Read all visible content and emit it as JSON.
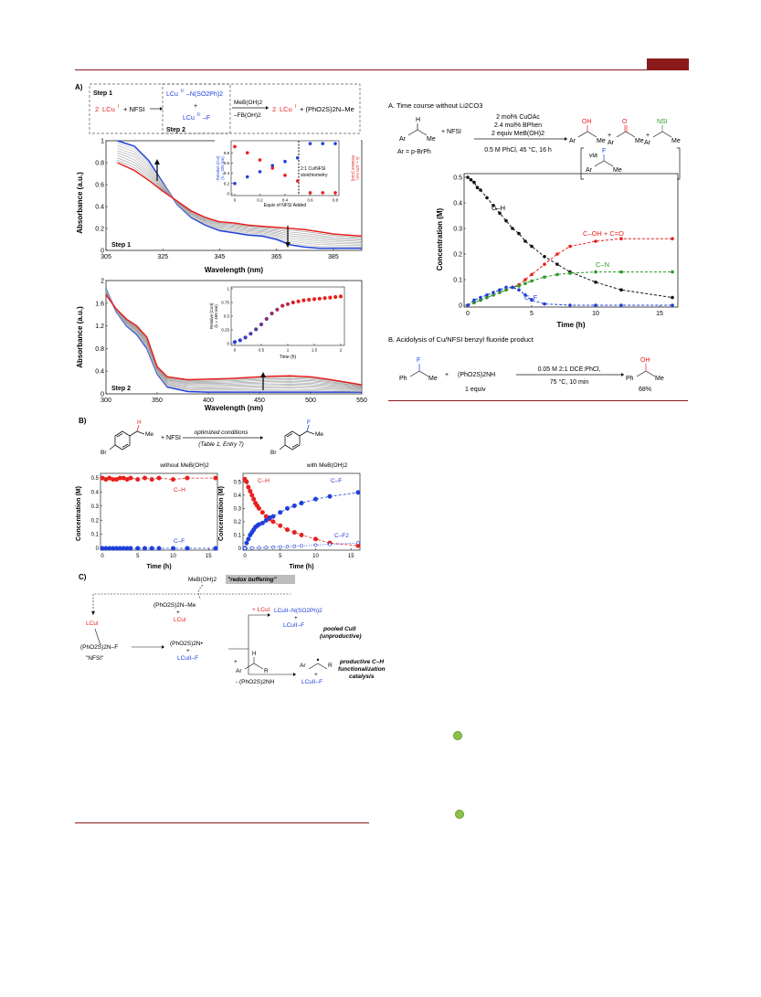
{
  "panelA_left": {
    "label": "A)",
    "step1": "Step 1",
    "step2": "Step 2",
    "reaction": {
      "coef": "2",
      "lcu": "LCu",
      "sup_i": "I",
      "sup_ii": "II",
      "nfsi": "+ NFSI",
      "top_product": "LCu",
      "top_product_tail": "–N(SO2Ph)2",
      "plus": "+",
      "bottom_product": "LCu",
      "bottom_product_tail": "–F",
      "reagent_top": "MeB(OH)2",
      "reagent_bottom": "–FB(OH)2",
      "right_coef": "2",
      "right_rest": "+ (PhO2S)2N–Me"
    },
    "spec1": {
      "ylabel": "Absorbance (a.u.)",
      "xlabel": "Wavelength (nm)",
      "yticks": [
        "0",
        "0.2",
        "0.4",
        "0.6",
        "0.8",
        "1"
      ],
      "xticks": [
        "305",
        "325",
        "345",
        "365",
        "385"
      ],
      "step": "Step 1"
    },
    "inset1": {
      "xlabel": "Equiv of NFSI Added",
      "ylabel_left": "Relative [CuI]",
      "ylabel_left2": "(λ = 325 nm)",
      "ylabel_right": "Relative [CuII]",
      "ylabel_right2": "(λ = 375 nm)",
      "annot1": "2:1 Cu/NFSI",
      "annot2": "stoichiometry",
      "xticks": [
        "0",
        "0.2",
        "0.4",
        "0.6",
        "0.8"
      ],
      "yticks": [
        "0",
        "0.2",
        "0.4",
        "0.6",
        "0.8"
      ]
    },
    "spec2": {
      "ylabel": "Absorbance (a.u.)",
      "xlabel": "Wavelength (nm)",
      "yticks": [
        "0",
        "0.4",
        "0.8",
        "1.2",
        "1.6",
        "2"
      ],
      "xticks": [
        "300",
        "350",
        "400",
        "450",
        "500",
        "550"
      ],
      "step": "Step 2"
    },
    "inset2": {
      "xlabel": "Time (h)",
      "ylabel": "Relative [CuII]",
      "ylabel2": "(λ = 460 nm)",
      "xticks": [
        "0",
        "0.5",
        "1",
        "1.5",
        "2"
      ],
      "yticks": [
        "0",
        "0.25",
        "0.5",
        "0.75",
        "1"
      ]
    }
  },
  "panelB": {
    "label": "B)",
    "me": "Me",
    "br": "Br",
    "h": "H",
    "f": "F",
    "nfsi": "+ NFSI",
    "arrow_top": "optimized conditions",
    "arrow_bottom": "(Table 1, Entry 7)",
    "left_title": "without MeB(OH)2",
    "right_title": "with MeB(OH)2",
    "ylabel": "Concentration (M)",
    "xlabel": "Time (h)",
    "yticks": [
      "0",
      "0.1",
      "0.2",
      "0.3",
      "0.4",
      "0.5"
    ],
    "xticks": [
      "0",
      "5",
      "10",
      "15"
    ],
    "ch": "C–H",
    "cf": "C–F",
    "cf2": "C–F2"
  },
  "panelC": {
    "label": "C)",
    "meboh": "MeB(OH)2",
    "redox": "\"redox buffering\"",
    "nme": "(PhO2S)2N–Me",
    "plus": "+",
    "lcu1": "LCuI",
    "plus_lcu": "+ LCuI",
    "pooled_top": "LCuII–N(SO2Ph)2",
    "pooled_bottom": "LCuII–F",
    "pooled_label1": "pooled CuII",
    "pooled_label2": "(unproductive)",
    "nf": "(PhO2S)2N–F",
    "nfsi_q": "\"NFSI\"",
    "radical": "(PhO2S)2N•",
    "lcuf": "LCuII–F",
    "ar": "Ar",
    "r": "R",
    "h": "H",
    "nh": "- (PhO2S)2NH",
    "prod_label1": "productive C–H",
    "prod_label2": "functionalization",
    "prod_label3": "catalysis"
  },
  "panelA_right": {
    "title": "A. Time course without Li2CO3",
    "h": "H",
    "ar": "Ar",
    "me": "Me",
    "nfsi": "+ NFSI",
    "cond1": "2 mol% CuOAc",
    "cond2": "2.4 mol% BPhen",
    "cond3": "2 equiv MeB(OH)2",
    "cond4": "0.5 M PhCl, 45 °C, 16 h",
    "ar_def": "Ar = p-BrPh",
    "oh": "OH",
    "o": "O",
    "nsi": "NSI",
    "via": "via",
    "f": "F",
    "ylabel": "Concentration (M)",
    "xlabel": "Time (h)",
    "yticks": [
      "0",
      "0.1",
      "0.2",
      "0.3",
      "0.4",
      "0.5"
    ],
    "xticks": [
      "0",
      "5",
      "10",
      "15"
    ],
    "lab_ch": "C–H",
    "lab_cohco": "C–OH + C=O",
    "lab_cn": "C–N",
    "lab_cf": "C–F"
  },
  "panelB_right": {
    "title": "B. Acidolysis of Cu/NFSI benzyl fluoride product",
    "f": "F",
    "ph": "Ph",
    "me": "Me",
    "plus": "+",
    "reagent": "(PhO2S)2NH",
    "equiv": "1 equiv",
    "cond1": "0.05 M 2:1 DCE:PhCl,",
    "cond2": "75 °C, 10 min",
    "oh": "OH",
    "yield": "68%"
  },
  "colors": {
    "accent": "#8b1a1a",
    "red": "#e8201e",
    "blue": "#1f3fdc",
    "green": "#2a9a2a",
    "black": "#111111",
    "gray": "#9a9a9a"
  },
  "chart_data": [
    {
      "type": "line",
      "title": "Step 1",
      "xlabel": "Wavelength (nm)",
      "ylabel": "Absorbance (a.u.)",
      "xlim": [
        305,
        395
      ],
      "ylim": [
        0,
        1
      ],
      "x": [
        309,
        315,
        320,
        325,
        330,
        335,
        340,
        345,
        350,
        355,
        360,
        365,
        370,
        375,
        380,
        385,
        395
      ],
      "series": [
        {
          "color": "blue",
          "values": [
            1.0,
            0.95,
            0.82,
            0.62,
            0.42,
            0.3,
            0.23,
            0.18,
            0.16,
            0.14,
            0.13,
            0.1,
            0.05,
            0.03,
            0.02,
            0.02,
            0.02
          ]
        },
        {
          "color": "red",
          "values": [
            0.8,
            0.73,
            0.64,
            0.54,
            0.45,
            0.36,
            0.3,
            0.26,
            0.25,
            0.23,
            0.22,
            0.21,
            0.2,
            0.19,
            0.17,
            0.15,
            0.13
          ]
        }
      ]
    },
    {
      "type": "scatter",
      "xlabel": "Equiv of NFSI Added",
      "ylim": [
        0,
        1
      ],
      "xlim": [
        0,
        0.8
      ],
      "series": [
        {
          "color": "blue",
          "x": [
            0.0,
            0.1,
            0.2,
            0.3,
            0.4,
            0.5,
            0.6,
            0.7,
            0.8
          ],
          "values": [
            0.2,
            0.33,
            0.43,
            0.55,
            0.63,
            0.7,
            0.76,
            0.82,
            0.86
          ]
        },
        {
          "color": "red",
          "x": [
            0.0,
            0.1,
            0.2,
            0.3,
            0.4,
            0.5,
            0.6,
            0.7,
            0.8
          ],
          "values": [
            0.92,
            0.8,
            0.66,
            0.5,
            0.36,
            0.25,
            0.15,
            0.1,
            0.06
          ]
        }
      ]
    },
    {
      "type": "line",
      "title": "Step 2",
      "xlabel": "Wavelength (nm)",
      "ylabel": "Absorbance (a.u.)",
      "xlim": [
        300,
        550
      ],
      "ylim": [
        0,
        2
      ],
      "x": [
        300,
        310,
        320,
        330,
        340,
        350,
        360,
        380,
        400,
        420,
        440,
        460,
        480,
        500,
        520,
        540,
        550
      ],
      "series": [
        {
          "color": "blue",
          "values": [
            1.85,
            1.45,
            1.2,
            1.05,
            0.8,
            0.35,
            0.12,
            0.04,
            0.03,
            0.03,
            0.03,
            0.03,
            0.03,
            0.03,
            0.03,
            0.03,
            0.03
          ]
        },
        {
          "color": "red",
          "values": [
            1.75,
            1.5,
            1.32,
            1.2,
            1.0,
            0.48,
            0.3,
            0.25,
            0.26,
            0.27,
            0.29,
            0.31,
            0.32,
            0.3,
            0.25,
            0.19,
            0.16
          ]
        }
      ]
    },
    {
      "type": "scatter",
      "xlabel": "Time (h)",
      "xlim": [
        0,
        2
      ],
      "ylim": [
        0,
        1
      ],
      "series": [
        {
          "color": "blue-red",
          "x": [
            0.0,
            0.1,
            0.2,
            0.3,
            0.4,
            0.5,
            0.6,
            0.7,
            0.8,
            0.9,
            1.0,
            1.1,
            1.2,
            1.3,
            1.4,
            1.5,
            1.6,
            1.7,
            1.8,
            1.9,
            2.0
          ],
          "values": [
            0.03,
            0.06,
            0.11,
            0.18,
            0.26,
            0.35,
            0.45,
            0.55,
            0.62,
            0.69,
            0.72,
            0.75,
            0.77,
            0.79,
            0.8,
            0.81,
            0.82,
            0.83,
            0.84,
            0.85,
            0.86
          ]
        }
      ]
    },
    {
      "type": "scatter",
      "title": "without MeB(OH)2",
      "xlabel": "Time (h)",
      "ylabel": "Concentration (M)",
      "xlim": [
        0,
        16
      ],
      "ylim": [
        0,
        0.5
      ],
      "series": [
        {
          "name": "C–H",
          "color": "red",
          "x": [
            0,
            0.5,
            1,
            1.5,
            2,
            2.5,
            3,
            3.5,
            4,
            5,
            6,
            7,
            8,
            10,
            12,
            16
          ],
          "values": [
            0.5,
            0.49,
            0.5,
            0.49,
            0.49,
            0.5,
            0.5,
            0.49,
            0.5,
            0.49,
            0.5,
            0.49,
            0.5,
            0.49,
            0.5,
            0.5
          ]
        },
        {
          "name": "C–F",
          "color": "blue",
          "x": [
            0,
            0.5,
            1,
            1.5,
            2,
            2.5,
            3,
            3.5,
            4,
            5,
            6,
            7,
            8,
            10,
            12,
            16
          ],
          "values": [
            0,
            0,
            0,
            0,
            0,
            0,
            0,
            0,
            0,
            0,
            0,
            0,
            0,
            0,
            0,
            0
          ]
        }
      ]
    },
    {
      "type": "scatter",
      "title": "with MeB(OH)2",
      "xlabel": "Time (h)",
      "ylabel": "Concentration (M)",
      "xlim": [
        0,
        16
      ],
      "ylim": [
        0,
        0.55
      ],
      "series": [
        {
          "name": "C–H",
          "color": "red",
          "x": [
            0,
            0.25,
            0.5,
            0.75,
            1,
            1.25,
            1.5,
            1.75,
            2,
            2.5,
            3,
            3.5,
            4,
            5,
            6,
            7,
            8,
            10,
            12,
            16
          ],
          "values": [
            0.52,
            0.5,
            0.46,
            0.43,
            0.4,
            0.37,
            0.34,
            0.32,
            0.3,
            0.27,
            0.24,
            0.22,
            0.2,
            0.17,
            0.14,
            0.12,
            0.1,
            0.07,
            0.04,
            0.02
          ]
        },
        {
          "name": "C–F",
          "color": "blue",
          "x": [
            0,
            0.25,
            0.5,
            0.75,
            1,
            1.25,
            1.5,
            1.75,
            2,
            2.5,
            3,
            3.5,
            4,
            5,
            6,
            7,
            8,
            10,
            12,
            16
          ],
          "values": [
            0.0,
            0.04,
            0.07,
            0.1,
            0.12,
            0.14,
            0.16,
            0.17,
            0.18,
            0.19,
            0.21,
            0.23,
            0.24,
            0.27,
            0.3,
            0.32,
            0.34,
            0.37,
            0.39,
            0.42
          ]
        },
        {
          "name": "C–F2",
          "color": "blue-open",
          "x": [
            0,
            1,
            2,
            3,
            4,
            5,
            6,
            7,
            8,
            10,
            12,
            16
          ],
          "values": [
            0,
            0.002,
            0.004,
            0.006,
            0.008,
            0.01,
            0.012,
            0.015,
            0.018,
            0.024,
            0.03,
            0.04
          ]
        }
      ]
    },
    {
      "type": "scatter",
      "title": "A. Time course without Li2CO3",
      "xlabel": "Time (h)",
      "ylabel": "Concentration (M)",
      "xlim": [
        0,
        16
      ],
      "ylim": [
        0,
        0.5
      ],
      "series": [
        {
          "name": "C–H",
          "color": "black",
          "x": [
            0,
            0.25,
            0.5,
            0.75,
            1,
            1.5,
            2,
            2.5,
            3,
            3.5,
            4,
            4.5,
            5,
            6,
            7,
            8,
            10,
            12,
            16
          ],
          "values": [
            0.5,
            0.49,
            0.48,
            0.46,
            0.45,
            0.42,
            0.39,
            0.36,
            0.33,
            0.3,
            0.28,
            0.25,
            0.23,
            0.19,
            0.16,
            0.13,
            0.09,
            0.06,
            0.03
          ]
        },
        {
          "name": "C–OH + C=O",
          "color": "red",
          "x": [
            0,
            0.5,
            1,
            1.5,
            2,
            2.5,
            3,
            3.5,
            4,
            4.5,
            5,
            6,
            7,
            8,
            10,
            12,
            16
          ],
          "values": [
            0.0,
            0.01,
            0.02,
            0.03,
            0.04,
            0.05,
            0.06,
            0.07,
            0.08,
            0.1,
            0.12,
            0.16,
            0.2,
            0.23,
            0.25,
            0.26,
            0.26
          ]
        },
        {
          "name": "C–N",
          "color": "green",
          "x": [
            0,
            0.5,
            1,
            1.5,
            2,
            2.5,
            3,
            3.5,
            4,
            4.5,
            5,
            6,
            7,
            8,
            10,
            12,
            16
          ],
          "values": [
            0.0,
            0.01,
            0.02,
            0.03,
            0.04,
            0.05,
            0.06,
            0.07,
            0.075,
            0.085,
            0.095,
            0.11,
            0.12,
            0.125,
            0.13,
            0.13,
            0.13
          ]
        },
        {
          "name": "C–F",
          "color": "blue",
          "x": [
            0,
            0.5,
            1,
            1.5,
            2,
            2.5,
            3,
            3.5,
            4,
            4.5,
            5,
            6,
            8,
            10,
            12,
            16
          ],
          "values": [
            0.0,
            0.02,
            0.03,
            0.04,
            0.05,
            0.06,
            0.07,
            0.07,
            0.06,
            0.04,
            0.02,
            0.005,
            0.0,
            0.0,
            0.0,
            0.0
          ]
        }
      ]
    }
  ]
}
